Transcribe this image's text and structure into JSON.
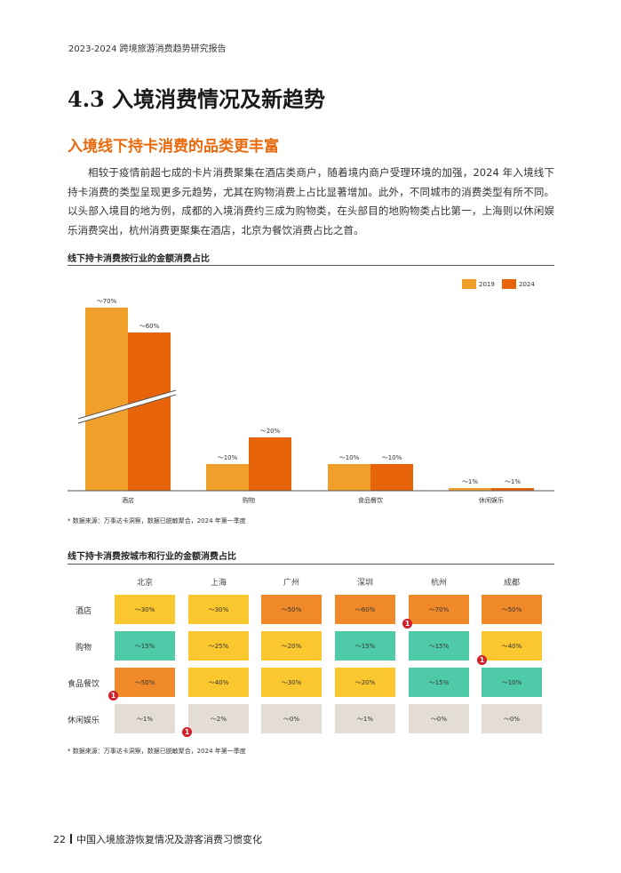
{
  "header": {
    "title": "2023-2024 跨境旅游消费趋势研究报告"
  },
  "section": {
    "title": "4.3 入境消费情况及新趋势"
  },
  "subsection": {
    "title": "入境线下持卡消费的品类更丰富"
  },
  "paragraph": "相较于疫情前超七成的卡片消费聚集在酒店类商户，随着境内商户受理环境的加强，2024 年入境线下持卡消费的类型呈现更多元趋势，尤其在购物消费上占比显著增加。此外，不同城市的消费类型有所不同。以头部入境目的地为例，成都的入境消费约三成为购物类，在头部目的地购物类占比第一，上海则以休闲娱乐消费突出，杭州消费更聚集在酒店，北京为餐饮消费占比之首。",
  "chart1": {
    "title": "线下持卡消费按行业的金额消费占比",
    "note": "* 数据来源：万事达卡洞察，数据已脱敏聚合，2024 年第一季度"
  },
  "chart_data": {
    "type": "bar",
    "categories": [
      "酒店",
      "购物",
      "食品餐饮",
      "休闲娱乐"
    ],
    "series": [
      {
        "name": "2019",
        "color": "#f0a02a",
        "values": [
          70,
          10,
          10,
          1
        ],
        "labels": [
          "～70%",
          "～10%",
          "～10%",
          "～1%"
        ]
      },
      {
        "name": "2024",
        "color": "#e8640a",
        "values": [
          60,
          20,
          10,
          1
        ],
        "labels": [
          "～60%",
          "～20%",
          "～10%",
          "～1%"
        ]
      }
    ],
    "axis_break": true,
    "legend_position": "top-right"
  },
  "chart2": {
    "title": "线下持卡消费按城市和行业的金额消费占比",
    "note": "* 数据来源：万事达卡洞察，数据已脱敏聚合，2024 年第一季度",
    "cities": [
      "北京",
      "上海",
      "广州",
      "深圳",
      "杭州",
      "成都"
    ],
    "rows": [
      {
        "label": "酒店",
        "cells": [
          {
            "value": "～30%",
            "color": "yellow"
          },
          {
            "value": "～30%",
            "color": "yellow"
          },
          {
            "value": "～50%",
            "color": "orange"
          },
          {
            "value": "～60%",
            "color": "orange"
          },
          {
            "value": "～70%",
            "color": "orange"
          },
          {
            "value": "～50%",
            "color": "orange"
          }
        ]
      },
      {
        "label": "购物",
        "cells": [
          {
            "value": "～15%",
            "color": "teal"
          },
          {
            "value": "～25%",
            "color": "yellow"
          },
          {
            "value": "～20%",
            "color": "yellow"
          },
          {
            "value": "～15%",
            "color": "teal"
          },
          {
            "value": "～15%",
            "color": "teal"
          },
          {
            "value": "～40%",
            "color": "yellow"
          }
        ]
      },
      {
        "label": "食品餐饮",
        "cells": [
          {
            "value": "～50%",
            "color": "orange"
          },
          {
            "value": "～40%",
            "color": "yellow"
          },
          {
            "value": "～30%",
            "color": "yellow"
          },
          {
            "value": "～20%",
            "color": "yellow"
          },
          {
            "value": "～15%",
            "color": "teal"
          },
          {
            "value": "～10%",
            "color": "teal"
          }
        ]
      },
      {
        "label": "休闲娱乐",
        "cells": [
          {
            "value": "～1%",
            "color": "grey"
          },
          {
            "value": "～2%",
            "color": "grey"
          },
          {
            "value": "～0%",
            "color": "grey"
          },
          {
            "value": "～1%",
            "color": "grey"
          },
          {
            "value": "～0%",
            "color": "grey"
          },
          {
            "value": "～0%",
            "color": "grey"
          }
        ]
      }
    ],
    "marker_label": "1"
  },
  "footer": {
    "page_number": "22",
    "title": "中国入境旅游恢复情况及游客消费习惯变化"
  }
}
